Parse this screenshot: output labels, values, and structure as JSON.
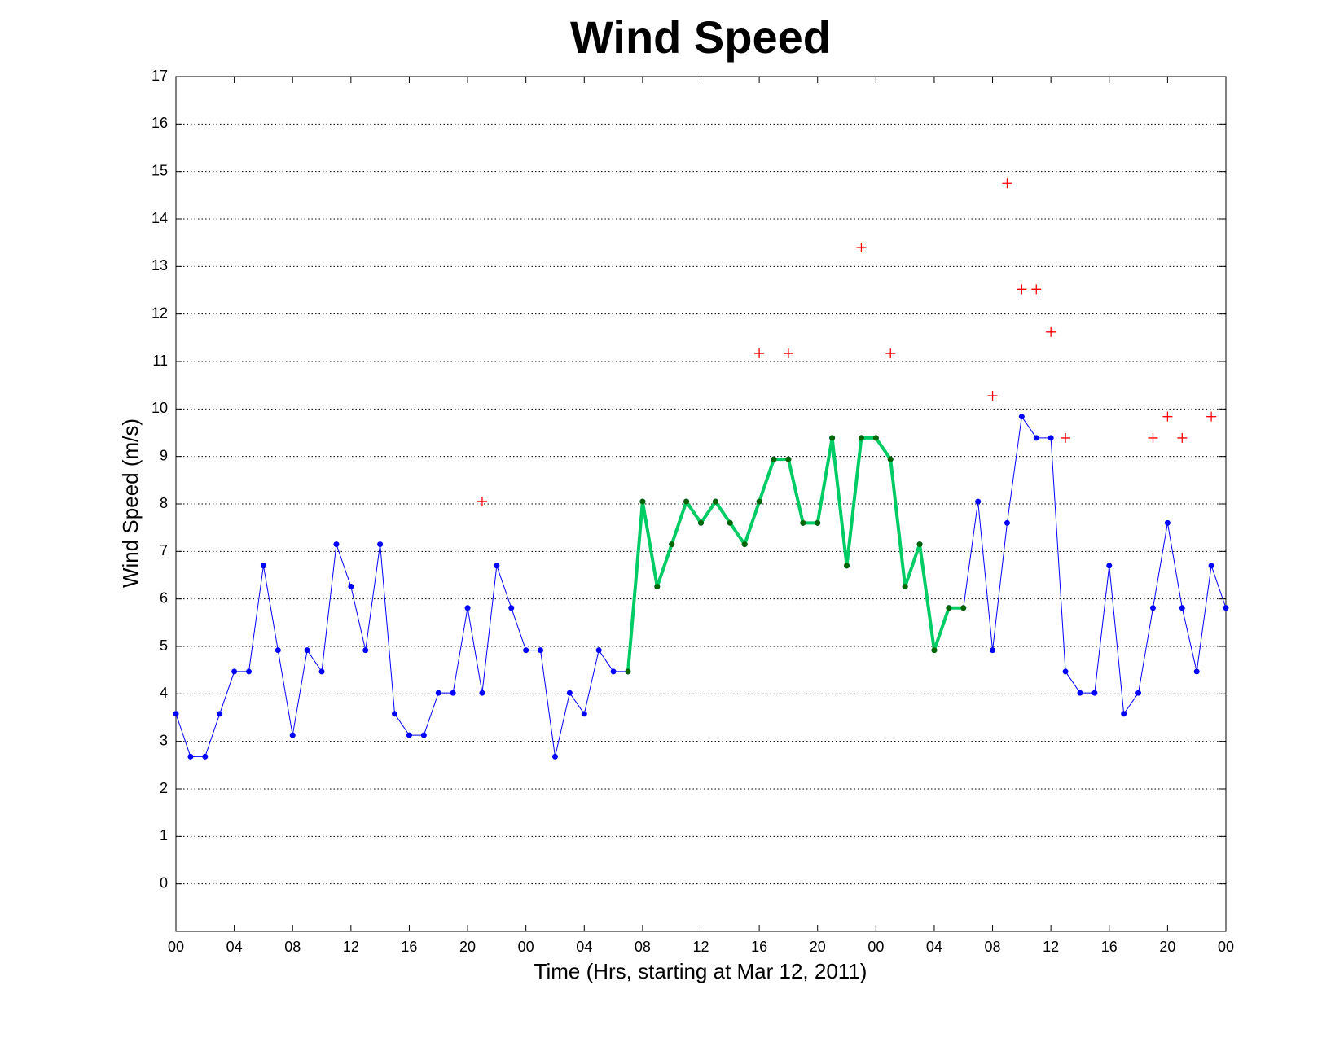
{
  "chart_data": {
    "type": "line",
    "title": "Wind Speed",
    "xlabel": "Time (Hrs, starting at Mar 12, 2011)",
    "ylabel": "Wind Speed (m/s)",
    "xlim": [
      0,
      72
    ],
    "ylim": [
      -1,
      17
    ],
    "xticks": [
      {
        "value": 0,
        "label": "00"
      },
      {
        "value": 4,
        "label": "04"
      },
      {
        "value": 8,
        "label": "08"
      },
      {
        "value": 12,
        "label": "12"
      },
      {
        "value": 16,
        "label": "16"
      },
      {
        "value": 20,
        "label": "20"
      },
      {
        "value": 24,
        "label": "00"
      },
      {
        "value": 28,
        "label": "04"
      },
      {
        "value": 32,
        "label": "08"
      },
      {
        "value": 36,
        "label": "12"
      },
      {
        "value": 40,
        "label": "16"
      },
      {
        "value": 44,
        "label": "20"
      },
      {
        "value": 48,
        "label": "00"
      },
      {
        "value": 52,
        "label": "04"
      },
      {
        "value": 56,
        "label": "08"
      },
      {
        "value": 60,
        "label": "12"
      },
      {
        "value": 64,
        "label": "16"
      },
      {
        "value": 68,
        "label": "20"
      },
      {
        "value": 72,
        "label": "00"
      }
    ],
    "yticks": [
      0,
      1,
      2,
      3,
      4,
      5,
      6,
      7,
      8,
      9,
      10,
      11,
      12,
      13,
      14,
      15,
      16,
      17
    ],
    "grid": "y",
    "series": [
      {
        "type": "line",
        "color": "#0000ff",
        "marker_color": "#0000ff",
        "width": 1,
        "x": [
          0,
          1,
          2,
          3,
          4,
          5,
          6,
          7,
          8,
          9,
          10,
          11,
          12,
          13,
          14,
          15,
          16,
          17,
          18,
          19,
          20,
          21,
          22,
          23,
          24,
          25,
          26,
          27,
          28,
          29,
          30,
          31,
          32,
          33,
          34,
          35,
          36,
          37,
          38,
          39,
          40,
          41,
          42,
          43,
          44,
          45,
          46,
          47,
          48,
          49,
          50,
          51,
          52,
          53,
          54,
          55,
          56,
          57,
          58,
          59,
          60,
          61,
          62,
          63,
          64,
          65,
          66,
          67,
          68,
          69,
          70,
          71,
          72
        ],
        "values": [
          3.58,
          2.68,
          2.68,
          3.58,
          4.47,
          4.47,
          6.7,
          4.92,
          3.13,
          4.92,
          4.47,
          7.15,
          6.26,
          4.92,
          7.15,
          3.58,
          3.13,
          3.13,
          4.02,
          4.02,
          5.81,
          4.02,
          6.7,
          5.81,
          4.92,
          4.92,
          2.68,
          4.02,
          3.58,
          4.92,
          4.47,
          4.47,
          8.05,
          6.26,
          7.15,
          8.05,
          7.6,
          8.05,
          7.6,
          7.15,
          8.05,
          8.94,
          8.94,
          7.6,
          7.6,
          9.39,
          6.7,
          9.39,
          9.39,
          8.94,
          6.26,
          7.15,
          4.92,
          5.81,
          5.81,
          8.05,
          4.92,
          7.6,
          9.84,
          9.39,
          9.39,
          4.47,
          4.02,
          4.02,
          6.7,
          3.58,
          4.02,
          5.81,
          7.6,
          5.81,
          4.47,
          6.7,
          5.81
        ]
      },
      {
        "type": "line",
        "color": "#00cc66",
        "marker_color": "#006600",
        "width": 4,
        "x": [
          31,
          32,
          33,
          34,
          35,
          36,
          37,
          38,
          39,
          40,
          41,
          42,
          43,
          44,
          45,
          46,
          47,
          48,
          49,
          50,
          51,
          52,
          53,
          54
        ],
        "values": [
          4.47,
          8.05,
          6.26,
          7.15,
          8.05,
          7.6,
          8.05,
          7.6,
          7.15,
          8.05,
          8.94,
          8.94,
          7.6,
          7.6,
          9.39,
          6.7,
          9.39,
          9.39,
          8.94,
          6.26,
          7.15,
          4.92,
          5.81,
          5.81
        ]
      },
      {
        "type": "scatter",
        "color": "#ff0000",
        "x": [
          21,
          40,
          42,
          47,
          49,
          56,
          57,
          58,
          59,
          60,
          61,
          67,
          68,
          69,
          71
        ],
        "values": [
          8.05,
          11.17,
          11.17,
          13.4,
          11.17,
          10.28,
          14.75,
          12.52,
          12.52,
          11.62,
          9.39,
          9.39,
          9.84,
          9.39,
          9.84
        ]
      }
    ]
  }
}
